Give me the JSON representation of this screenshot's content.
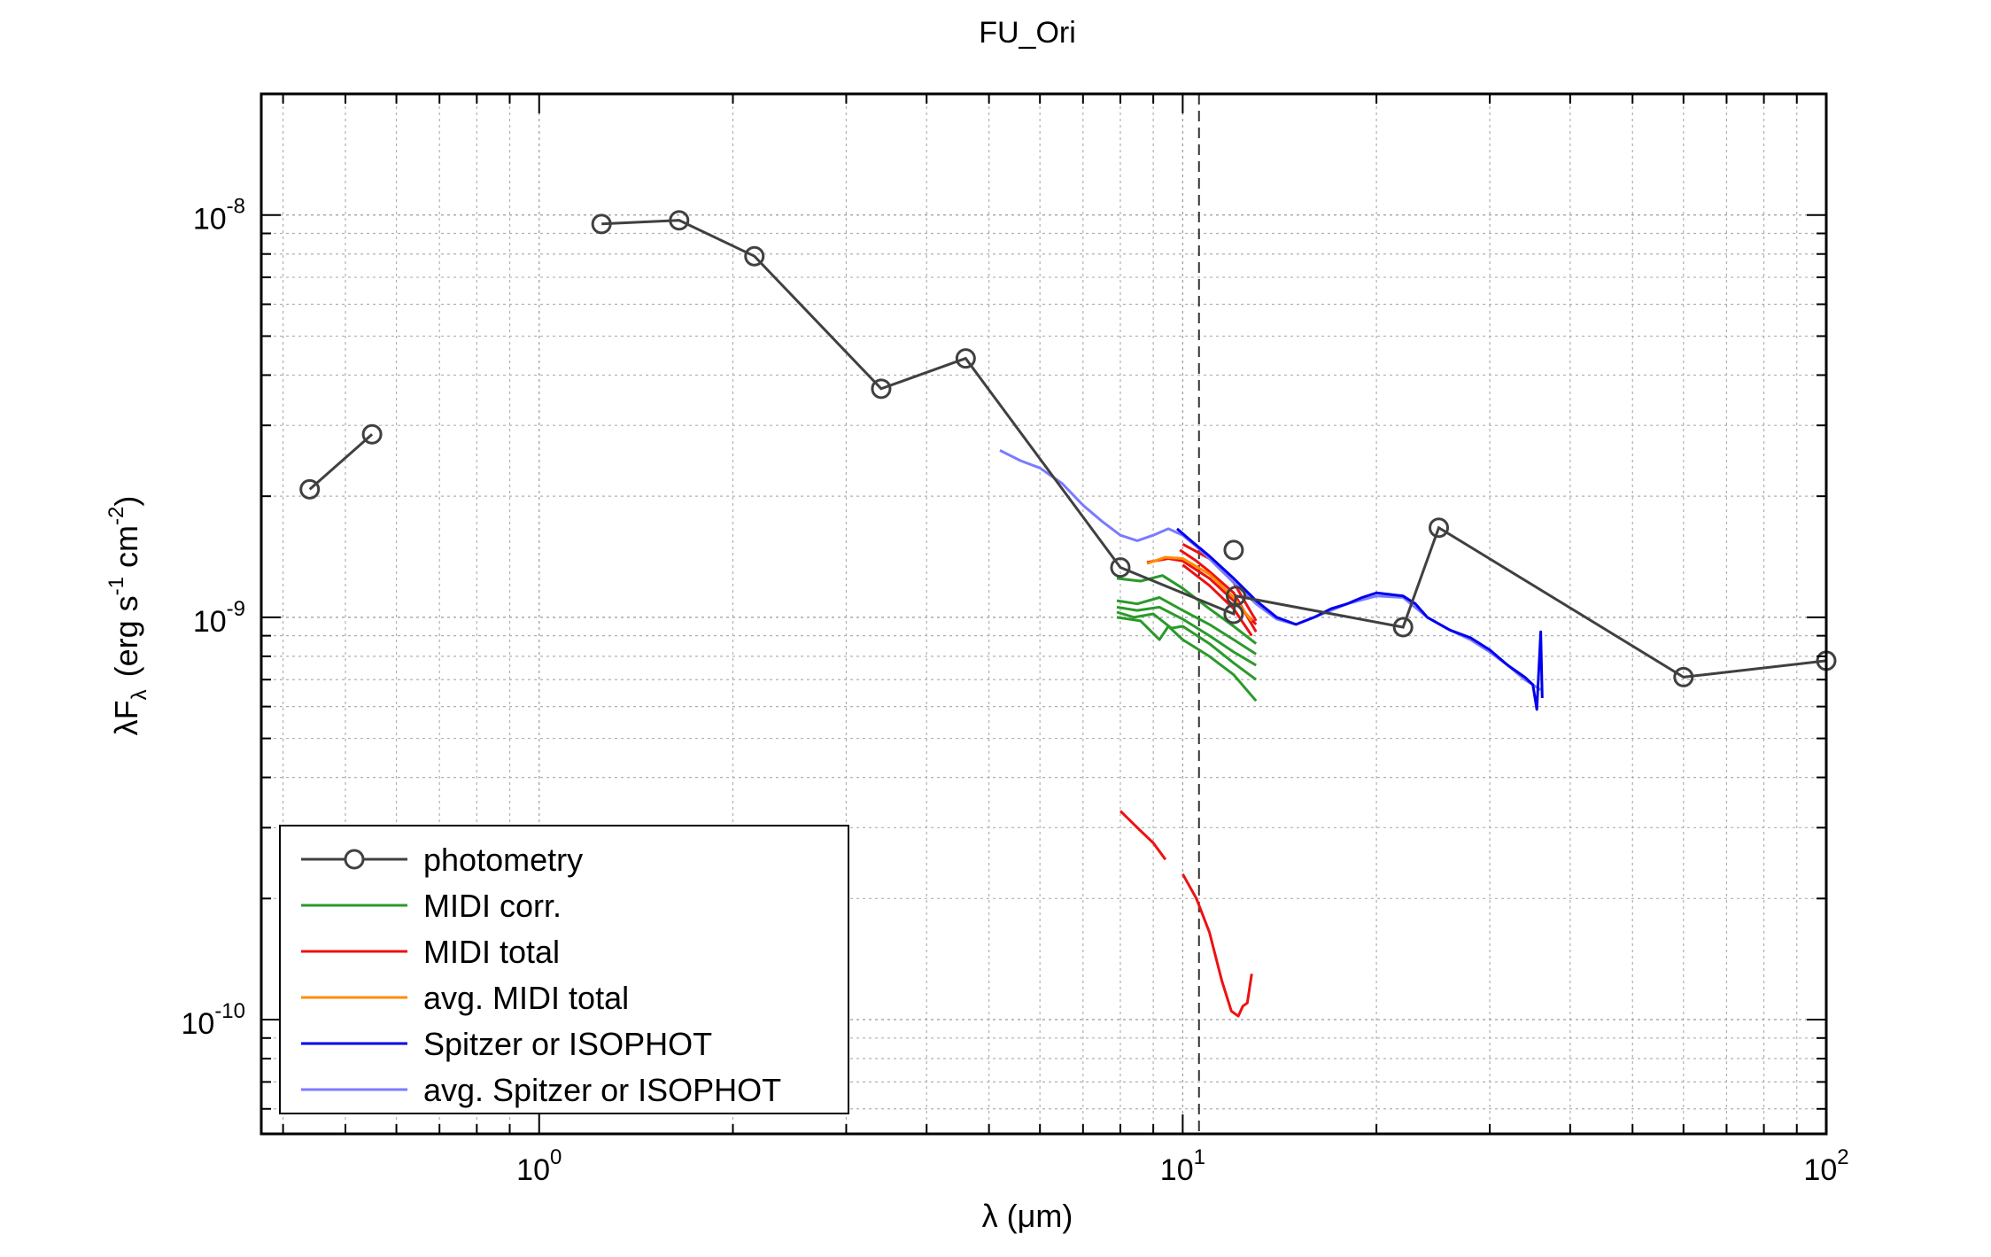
{
  "chart_data": {
    "type": "line",
    "title": "FU_Ori",
    "xlabel": "λ (μm)",
    "ylabel": {
      "main": "λF",
      "sub": "λ",
      "unit_open": "(erg s",
      "e1": "-1",
      "mid": " cm",
      "e2": "-2",
      "unit_close": ")"
    },
    "xscale": "log",
    "yscale": "log",
    "xlim": [
      0.37,
      100
    ],
    "ylim": [
      5.2e-11,
      2e-08
    ],
    "xticks": [
      {
        "value": 1,
        "base": "10",
        "exp": "0"
      },
      {
        "value": 10,
        "base": "10",
        "exp": "1"
      },
      {
        "value": 100,
        "base": "10",
        "exp": "2"
      }
    ],
    "yticks": [
      {
        "value": 1e-10,
        "base": "10",
        "exp": "-10"
      },
      {
        "value": 1e-09,
        "base": "10",
        "exp": "-9"
      },
      {
        "value": 1e-08,
        "base": "10",
        "exp": "-8"
      }
    ],
    "grid": true,
    "vline": {
      "x": 10.6,
      "style": "dashed"
    },
    "legend_position": "bottom-left",
    "legend": [
      {
        "label": "photometry",
        "color": "#404040",
        "marker": "circle"
      },
      {
        "label": "MIDI corr.",
        "color": "#2a9a2a"
      },
      {
        "label": "MIDI total",
        "color": "#ee1111"
      },
      {
        "label": "avg. MIDI total",
        "color": "#ff8c00"
      },
      {
        "label": "Spitzer or ISOPHOT",
        "color": "#0000ee"
      },
      {
        "label": "avg. Spitzer or ISOPHOT",
        "color": "#7b7bff"
      }
    ],
    "series": [
      {
        "name": "photometry",
        "color": "#404040",
        "marker": "circle",
        "segments": [
          [
            [
              0.44,
              2.08e-09
            ],
            [
              0.55,
              2.85e-09
            ]
          ],
          [
            [
              1.25,
              9.5e-09
            ],
            [
              1.65,
              9.7e-09
            ],
            [
              2.16,
              7.9e-09
            ],
            [
              3.4,
              3.7e-09
            ],
            [
              4.6,
              4.4e-09
            ],
            [
              8.0,
              1.33e-09
            ],
            [
              12.0,
              1.02e-09
            ],
            [
              12.1,
              1.13e-09
            ],
            [
              22.0,
              9.45e-10
            ],
            [
              25.0,
              1.67e-09
            ],
            [
              60.0,
              7.1e-10
            ],
            [
              100.0,
              7.8e-10
            ]
          ]
        ],
        "isolated_points": [
          [
            12.0,
            1.47e-09
          ]
        ]
      },
      {
        "name": "MIDI corr.",
        "color": "#2a9a2a",
        "curves": [
          [
            [
              7.9,
              1.25e-09
            ],
            [
              8.6,
              1.23e-09
            ],
            [
              9.3,
              1.27e-09
            ],
            [
              10.0,
              1.18e-09
            ],
            [
              11.0,
              1.05e-09
            ],
            [
              12.0,
              9.5e-10
            ],
            [
              13.0,
              8.6e-10
            ]
          ],
          [
            [
              7.9,
              1.1e-09
            ],
            [
              8.5,
              1.08e-09
            ],
            [
              9.2,
              1.12e-09
            ],
            [
              10.0,
              1.04e-09
            ],
            [
              11.0,
              9.6e-10
            ],
            [
              12.0,
              8.8e-10
            ],
            [
              13.0,
              8.1e-10
            ]
          ],
          [
            [
              7.9,
              1.06e-09
            ],
            [
              8.5,
              1.04e-09
            ],
            [
              9.2,
              1.06e-09
            ],
            [
              10.0,
              9.9e-10
            ],
            [
              11.0,
              9e-10
            ],
            [
              12.0,
              8.2e-10
            ],
            [
              13.0,
              7.6e-10
            ]
          ],
          [
            [
              7.9,
              1.03e-09
            ],
            [
              8.4,
              1e-09
            ],
            [
              9.0,
              1.02e-09
            ],
            [
              9.6,
              9.4e-10
            ],
            [
              10.0,
              9.5e-10
            ],
            [
              11.0,
              8.6e-10
            ],
            [
              12.0,
              7.7e-10
            ],
            [
              13.0,
              7e-10
            ]
          ],
          [
            [
              7.9,
              1e-09
            ],
            [
              8.6,
              9.8e-10
            ],
            [
              9.2,
              8.8e-10
            ],
            [
              9.5,
              9.5e-10
            ],
            [
              10.0,
              8.8e-10
            ],
            [
              11.0,
              8e-10
            ],
            [
              12.0,
              7.2e-10
            ],
            [
              13.0,
              6.2e-10
            ]
          ]
        ]
      },
      {
        "name": "MIDI total",
        "color": "#ee1111",
        "curves": [
          [
            [
              8.0,
              3.3e-10
            ],
            [
              8.5,
              3e-10
            ],
            [
              9.0,
              2.75e-10
            ],
            [
              9.4,
              2.5e-10
            ]
          ],
          [
            [
              10.0,
              2.3e-10
            ],
            [
              10.5,
              2e-10
            ],
            [
              11.0,
              1.65e-10
            ],
            [
              11.5,
              1.25e-10
            ],
            [
              11.9,
              1.05e-10
            ],
            [
              12.2,
              1.02e-10
            ],
            [
              12.4,
              1.08e-10
            ],
            [
              12.6,
              1.1e-10
            ],
            [
              12.8,
              1.3e-10
            ]
          ],
          [
            [
              8.8,
              1.37e-09
            ],
            [
              9.5,
              1.4e-09
            ],
            [
              10.0,
              1.38e-09
            ],
            [
              11.0,
              1.25e-09
            ],
            [
              12.0,
              1.1e-09
            ],
            [
              13.0,
              9.6e-10
            ]
          ],
          [
            [
              9.9,
              1.47e-09
            ],
            [
              10.5,
              1.38e-09
            ],
            [
              11.0,
              1.3e-09
            ],
            [
              12.0,
              1.15e-09
            ],
            [
              13.0,
              9.2e-10
            ]
          ],
          [
            [
              10.0,
              1.52e-09
            ],
            [
              11.0,
              1.4e-09
            ],
            [
              12.0,
              1.22e-09
            ],
            [
              13.0,
              9.8e-10
            ]
          ],
          [
            [
              10.0,
              1.35e-09
            ],
            [
              11.0,
              1.2e-09
            ],
            [
              12.0,
              1.05e-09
            ],
            [
              12.8,
              9e-10
            ]
          ]
        ]
      },
      {
        "name": "avg. MIDI total",
        "color": "#ff8c00",
        "curves": [
          [
            [
              8.8,
              1.36e-09
            ],
            [
              9.4,
              1.41e-09
            ],
            [
              10.0,
              1.4e-09
            ],
            [
              11.0,
              1.28e-09
            ],
            [
              12.0,
              1.12e-09
            ],
            [
              12.8,
              9.8e-10
            ]
          ]
        ]
      },
      {
        "name": "Spitzer or ISOPHOT",
        "color": "#0000ee",
        "curves": [
          [
            [
              9.8,
              1.66e-09
            ],
            [
              10.3,
              1.55e-09
            ],
            [
              11.0,
              1.42e-09
            ],
            [
              12.0,
              1.25e-09
            ],
            [
              13.0,
              1.1e-09
            ],
            [
              14.0,
              1e-09
            ],
            [
              15.0,
              9.6e-10
            ],
            [
              16.0,
              1e-09
            ],
            [
              17.0,
              1.05e-09
            ],
            [
              18.0,
              1.08e-09
            ],
            [
              19.0,
              1.12e-09
            ],
            [
              20.0,
              1.15e-09
            ],
            [
              22.0,
              1.13e-09
            ],
            [
              23.0,
              1.08e-09
            ],
            [
              24.0,
              1e-09
            ],
            [
              26.0,
              9.3e-10
            ],
            [
              28.0,
              8.9e-10
            ],
            [
              30.0,
              8.3e-10
            ],
            [
              32.0,
              7.6e-10
            ],
            [
              34.0,
              7.1e-10
            ],
            [
              35.0,
              6.8e-10
            ],
            [
              35.5,
              5.9e-10
            ],
            [
              36.0,
              9.2e-10
            ],
            [
              36.2,
              6.3e-10
            ]
          ]
        ]
      },
      {
        "name": "avg. Spitzer or ISOPHOT",
        "color": "#7b7bff",
        "curves": [
          [
            [
              5.2,
              2.6e-09
            ],
            [
              5.6,
              2.45e-09
            ],
            [
              6.0,
              2.35e-09
            ],
            [
              6.5,
              2.15e-09
            ],
            [
              7.0,
              1.9e-09
            ],
            [
              7.5,
              1.73e-09
            ],
            [
              8.0,
              1.6e-09
            ],
            [
              8.5,
              1.55e-09
            ],
            [
              9.0,
              1.6e-09
            ],
            [
              9.5,
              1.66e-09
            ],
            [
              10.0,
              1.6e-09
            ],
            [
              10.5,
              1.5e-09
            ],
            [
              11.0,
              1.4e-09
            ],
            [
              12.0,
              1.22e-09
            ],
            [
              13.0,
              1.08e-09
            ],
            [
              14.0,
              9.9e-10
            ],
            [
              15.0,
              9.6e-10
            ],
            [
              16.0,
              1e-09
            ],
            [
              18.0,
              1.08e-09
            ],
            [
              20.0,
              1.13e-09
            ],
            [
              22.0,
              1.12e-09
            ],
            [
              24.0,
              1e-09
            ],
            [
              26.0,
              9.3e-10
            ],
            [
              28.0,
              8.8e-10
            ],
            [
              30.0,
              8.2e-10
            ],
            [
              32.0,
              7.6e-10
            ],
            [
              34.0,
              7e-10
            ],
            [
              36.0,
              6.6e-10
            ]
          ]
        ]
      }
    ]
  }
}
